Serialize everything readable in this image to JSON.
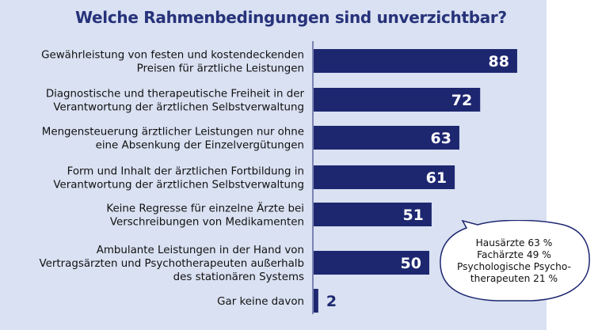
{
  "title": "Welche Rahmenbedingungen sind unverzichtbar?",
  "colors": {
    "bar": "#1d2770",
    "panel": "#d9e1f2",
    "title": "#27327a"
  },
  "chart_data": {
    "type": "bar",
    "orientation": "horizontal",
    "title": "Welche Rahmenbedingungen sind unverzichtbar?",
    "categories": [
      [
        "Gewährleistung von festen und kostendeckenden",
        "Preisen für ärztliche Leistungen"
      ],
      [
        "Diagnostische und therapeutische Freiheit in der",
        "Verantwortung der ärztlichen Selbstverwaltung"
      ],
      [
        "Mengensteuerung ärztlicher Leistungen nur ohne",
        "eine Absenkung der Einzelvergütungen"
      ],
      [
        "Form und Inhalt der ärztlichen Fortbildung in",
        "Verantwortung der ärztlichen Selbstverwaltung"
      ],
      [
        "Keine Regresse für einzelne Ärzte bei",
        "Verschreibungen von Medikamenten"
      ],
      [
        "Ambulante Leistungen in der Hand von",
        "Vertragsärzten und Psychotherapeuten außerhalb",
        "des stationären Systems"
      ],
      [
        "Gar keine davon"
      ]
    ],
    "values": [
      88,
      72,
      63,
      61,
      51,
      50,
      2
    ],
    "value_labels": [
      "88",
      "72",
      "63",
      "61",
      "51",
      "50",
      "2"
    ],
    "xlim": [
      0,
      100
    ],
    "grid": false,
    "legend": "none"
  },
  "callout": {
    "lines": [
      "Hausärzte 63 %",
      "Fachärzte 49 %",
      "Psychologische Psycho-",
      "therapeuten 21 %"
    ]
  }
}
